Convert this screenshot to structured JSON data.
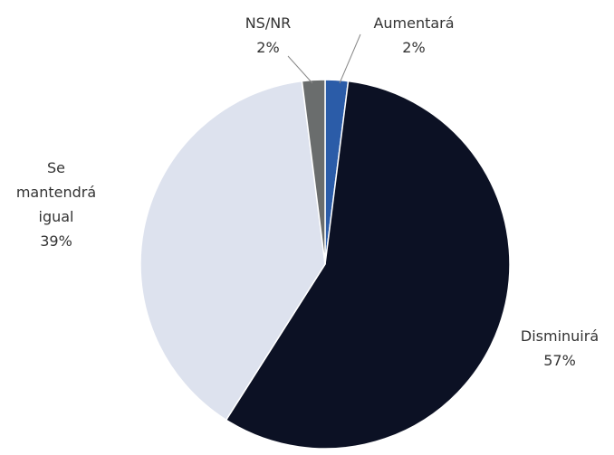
{
  "chart_data": {
    "type": "pie",
    "categories": [
      "Aumentará",
      "Disminuirá",
      "Se mantendrá igual",
      "NS/NR"
    ],
    "values": [
      2,
      57,
      39,
      2
    ],
    "value_labels": [
      "2%",
      "57%",
      "39%",
      "2%"
    ],
    "colors": [
      "#2b5ca8",
      "#0c1124",
      "#dde2ee",
      "#6a6d6d"
    ]
  }
}
